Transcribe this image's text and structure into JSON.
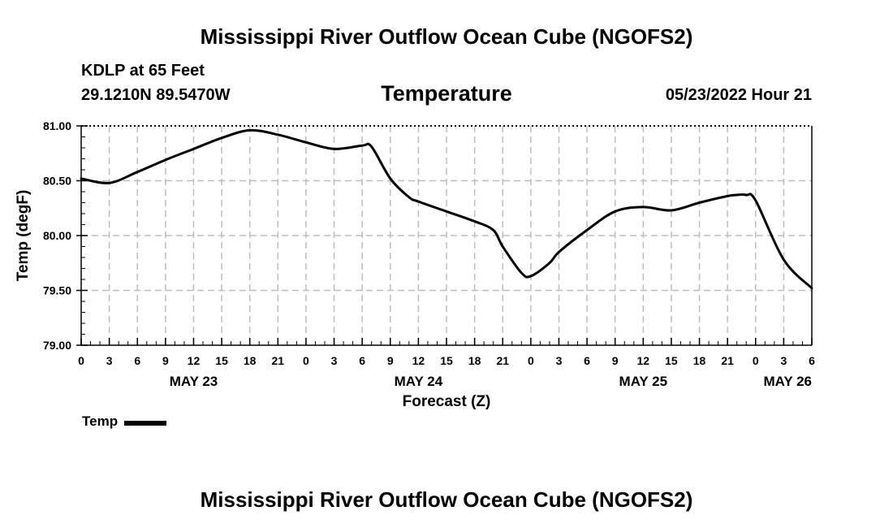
{
  "page": {
    "title_top": "Mississippi River Outflow Ocean Cube (NGOFS2)",
    "title_bottom": "Mississippi River Outflow Ocean Cube (NGOFS2)",
    "station": "KDLP at 65 Feet",
    "coords": "29.1210N  89.5470W",
    "chart_title": "Temperature",
    "datetime": "05/23/2022 Hour 21",
    "legend_label": "Temp"
  },
  "chart_data": {
    "type": "line",
    "title": "Temperature",
    "xlabel": "Forecast (Z)",
    "ylabel": "Temp (degF)",
    "xlim": [
      0,
      78
    ],
    "ylim": [
      79.0,
      81.0
    ],
    "y_ticks": [
      "79.00",
      "79.50",
      "80.00",
      "80.50",
      "81.00"
    ],
    "x_tick_labels": [
      "0",
      "3",
      "6",
      "9",
      "12",
      "15",
      "18",
      "21",
      "0",
      "3",
      "6",
      "9",
      "12",
      "15",
      "18",
      "21",
      "0",
      "3",
      "6",
      "9",
      "12",
      "15",
      "18",
      "21",
      "0",
      "3",
      "6"
    ],
    "day_labels": [
      {
        "label": "MAY 23",
        "hour": 12
      },
      {
        "label": "MAY 24",
        "hour": 36
      },
      {
        "label": "MAY 25",
        "hour": 60
      },
      {
        "label": "MAY 26",
        "hour": 78
      }
    ],
    "grid": true,
    "legend": "bottom-left",
    "series": [
      {
        "name": "Temp",
        "x": [
          0,
          3,
          6,
          9,
          12,
          15,
          18,
          21,
          24,
          27,
          30,
          31,
          33,
          35,
          36,
          39,
          42,
          44,
          45,
          47,
          48,
          50,
          51,
          54,
          57,
          60,
          63,
          66,
          69,
          70,
          71,
          72,
          75,
          78
        ],
        "y": [
          80.52,
          80.48,
          80.58,
          80.69,
          80.79,
          80.89,
          80.96,
          80.92,
          80.85,
          80.79,
          80.82,
          80.81,
          80.52,
          80.35,
          80.31,
          80.22,
          80.13,
          80.05,
          79.9,
          79.66,
          79.63,
          79.75,
          79.85,
          80.05,
          80.22,
          80.26,
          80.23,
          80.3,
          80.36,
          80.37,
          80.37,
          80.32,
          79.78,
          79.52
        ]
      }
    ]
  }
}
